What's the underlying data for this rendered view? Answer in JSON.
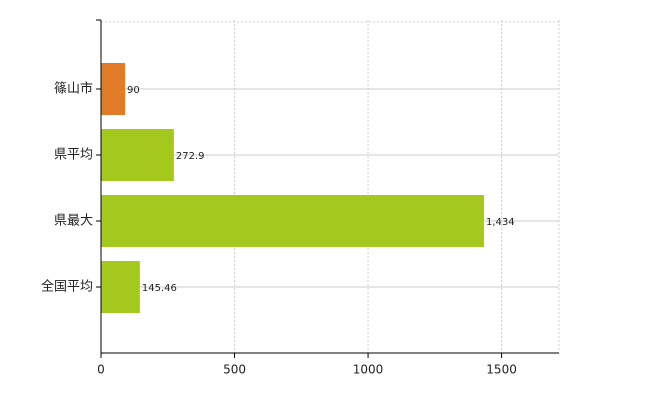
{
  "chart_data": {
    "type": "hbar",
    "categories": [
      "篠山市",
      "県平均",
      "県最大",
      "全国平均"
    ],
    "values": [
      90,
      272.9,
      1434,
      145.46
    ],
    "value_labels": [
      "90",
      "272.9",
      "1,434",
      "145.46"
    ],
    "colors": [
      "#e07b28",
      "#a5c81e",
      "#a5c81e",
      "#a5c81e"
    ],
    "xlim": [
      0,
      1715
    ],
    "xticks": [
      0,
      500,
      1000,
      1500
    ],
    "grid": true
  }
}
